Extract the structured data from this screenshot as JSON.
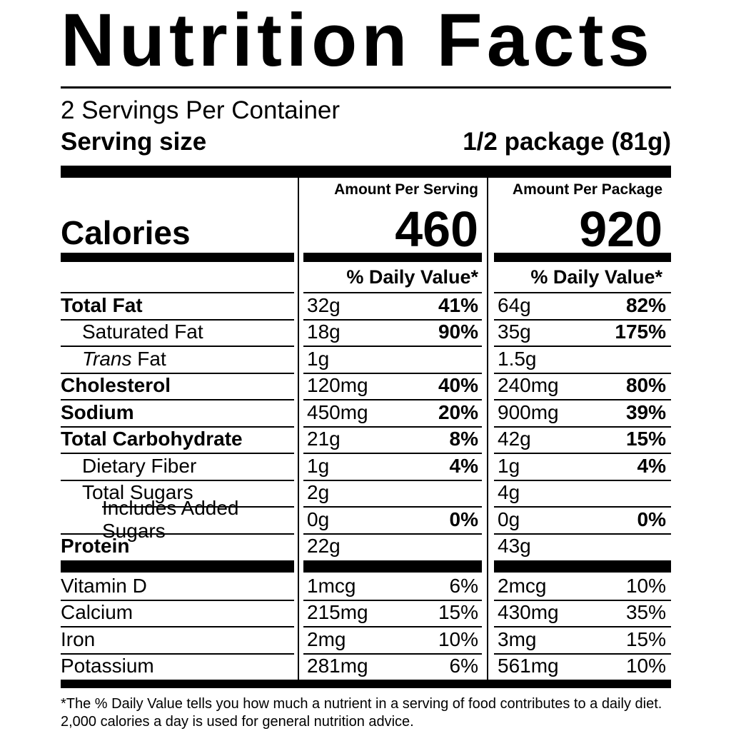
{
  "header": {
    "title": "Nutrition Facts",
    "servings_per_container": "2 Servings Per Container",
    "serving_size_label": "Serving size",
    "serving_size_value": "1/2 package (81g)"
  },
  "calories": {
    "label": "Calories",
    "serving_header": "Amount Per Serving",
    "package_header": "Amount Per Package",
    "serving_value": "460",
    "package_value": "920",
    "daily_value_header": "% Daily Value*"
  },
  "nutrients": [
    {
      "label": "Total Fat",
      "serving_amount": "32g",
      "serving_dv": "41%",
      "package_amount": "64g",
      "package_dv": "82%"
    },
    {
      "label": "Saturated Fat",
      "serving_amount": "18g",
      "serving_dv": "90%",
      "package_amount": "35g",
      "package_dv": "175%"
    },
    {
      "label_italic": "Trans",
      "label_rest": "Fat",
      "serving_amount": "1g",
      "serving_dv": "",
      "package_amount": "1.5g",
      "package_dv": ""
    },
    {
      "label": "Cholesterol",
      "serving_amount": "120mg",
      "serving_dv": "40%",
      "package_amount": "240mg",
      "package_dv": "80%"
    },
    {
      "label": "Sodium",
      "serving_amount": "450mg",
      "serving_dv": "20%",
      "package_amount": "900mg",
      "package_dv": "39%"
    },
    {
      "label": "Total Carbohydrate",
      "serving_amount": "21g",
      "serving_dv": "8%",
      "package_amount": "42g",
      "package_dv": "15%"
    },
    {
      "label": "Dietary Fiber",
      "serving_amount": "1g",
      "serving_dv": "4%",
      "package_amount": "1g",
      "package_dv": "4%"
    },
    {
      "label": "Total Sugars",
      "serving_amount": "2g",
      "serving_dv": "",
      "package_amount": "4g",
      "package_dv": ""
    },
    {
      "label": "Includes Added Sugars",
      "serving_amount": "0g",
      "serving_dv": "0%",
      "package_amount": "0g",
      "package_dv": "0%"
    },
    {
      "label": "Protein",
      "serving_amount": "22g",
      "serving_dv": "",
      "package_amount": "43g",
      "package_dv": ""
    }
  ],
  "vitamins": [
    {
      "label": "Vitamin D",
      "serving_amount": "1mcg",
      "serving_dv": "6%",
      "package_amount": "2mcg",
      "package_dv": "10%"
    },
    {
      "label": "Calcium",
      "serving_amount": "215mg",
      "serving_dv": "15%",
      "package_amount": "430mg",
      "package_dv": "35%"
    },
    {
      "label": "Iron",
      "serving_amount": "2mg",
      "serving_dv": "10%",
      "package_amount": "3mg",
      "package_dv": "15%"
    },
    {
      "label": "Potassium",
      "serving_amount": "281mg",
      "serving_dv": "6%",
      "package_amount": "561mg",
      "package_dv": "10%"
    }
  ],
  "footnote_lines": [
    "*The % Daily Value tells you how much a nutrient in a serving of food contributes to a daily diet.",
    "2,000 calories a day is used for general nutrition advice."
  ],
  "colors": {
    "text": "#000000",
    "background": "#ffffff"
  }
}
